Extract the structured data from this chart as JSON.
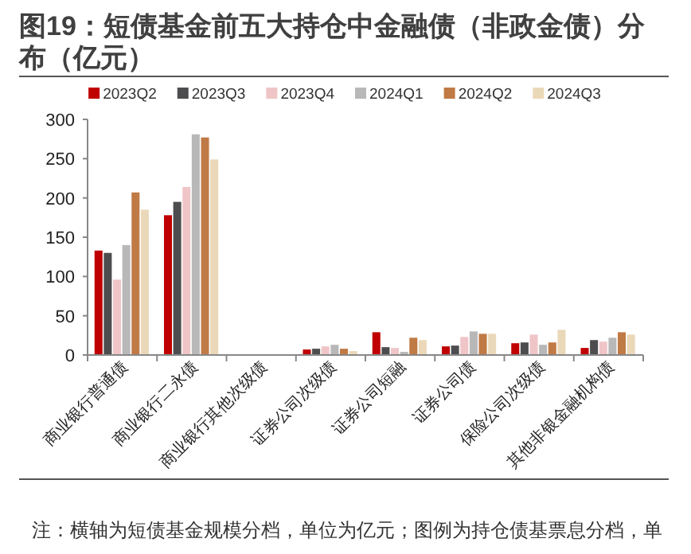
{
  "chart_data": {
    "type": "bar",
    "title": "图19：短债基金前五大持仓中金融债（非政金债）分布（亿元）",
    "categories": [
      "商业银行普通债",
      "商业银行二永债",
      "商业银行其他次级债",
      "证券公司次级债",
      "证券公司短融",
      "证券公司债",
      "保险公司次级债",
      "其他非银金融机构债"
    ],
    "series": [
      {
        "name": "2023Q2",
        "color": "#c00000",
        "values": [
          133,
          178,
          0,
          7,
          29,
          11,
          15,
          9
        ]
      },
      {
        "name": "2023Q3",
        "color": "#4d4d4f",
        "values": [
          130,
          195,
          0,
          8,
          10,
          12,
          16,
          19
        ]
      },
      {
        "name": "2023Q4",
        "color": "#efc5c8",
        "values": [
          96,
          214,
          0,
          11,
          9,
          23,
          26,
          17
        ]
      },
      {
        "name": "2024Q1",
        "color": "#b8b8b8",
        "values": [
          140,
          281,
          0,
          13,
          4,
          30,
          13,
          22
        ]
      },
      {
        "name": "2024Q2",
        "color": "#c07a45",
        "values": [
          207,
          277,
          null,
          8,
          22,
          27,
          16,
          29
        ]
      },
      {
        "name": "2024Q3",
        "color": "#ead8b8",
        "values": [
          185,
          249,
          null,
          5,
          19,
          27,
          32,
          26
        ]
      }
    ],
    "ylim": [
      0,
      300
    ],
    "yticks": [
      0,
      50,
      100,
      150,
      200,
      250,
      300
    ],
    "grid": false,
    "legend": "top",
    "annotations": [
      "注：横轴为短债基金规模分档，单位为亿元；图例为持仓债基票息分档，单"
    ]
  }
}
